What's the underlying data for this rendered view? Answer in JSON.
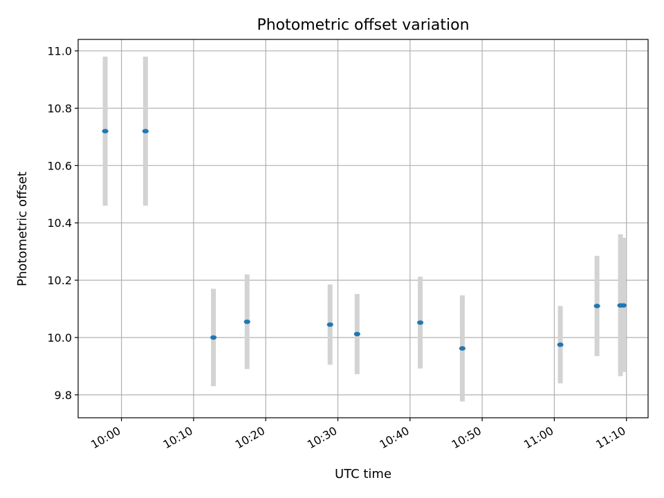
{
  "chart_data": {
    "type": "scatter",
    "title": "Photometric offset variation",
    "xlabel": "UTC time",
    "ylabel": "Photometric offset",
    "x_axis": {
      "kind": "time",
      "range": [
        "09:54",
        "11:13"
      ],
      "ticks": [
        "10:00",
        "10:10",
        "10:20",
        "10:30",
        "10:40",
        "10:50",
        "11:00",
        "11:10"
      ]
    },
    "y_axis": {
      "range": [
        9.72,
        11.04
      ],
      "ticks": [
        9.8,
        10.0,
        10.2,
        10.4,
        10.6,
        10.8,
        11.0
      ],
      "tick_labels": [
        "9.8",
        "10.0",
        "10.2",
        "10.4",
        "10.6",
        "10.8",
        "11.0"
      ]
    },
    "grid": true,
    "colors": {
      "point": "#1f77b4",
      "errorbar": "#d3d3d3",
      "grid": "#b0b0b0"
    },
    "points": [
      {
        "x": "09:57:45",
        "y": 10.72,
        "y_low": 10.46,
        "y_high": 10.98
      },
      {
        "x": "10:03:20",
        "y": 10.72,
        "y_low": 10.46,
        "y_high": 10.98
      },
      {
        "x": "10:12:45",
        "y": 10.0,
        "y_low": 9.83,
        "y_high": 10.17
      },
      {
        "x": "10:17:25",
        "y": 10.055,
        "y_low": 9.89,
        "y_high": 10.22
      },
      {
        "x": "10:28:55",
        "y": 10.045,
        "y_low": 9.905,
        "y_high": 10.185
      },
      {
        "x": "10:32:40",
        "y": 10.012,
        "y_low": 9.872,
        "y_high": 10.152
      },
      {
        "x": "10:41:25",
        "y": 10.052,
        "y_low": 9.892,
        "y_high": 10.212
      },
      {
        "x": "10:47:15",
        "y": 9.962,
        "y_low": 9.777,
        "y_high": 10.147
      },
      {
        "x": "11:00:50",
        "y": 9.975,
        "y_low": 9.84,
        "y_high": 10.11
      },
      {
        "x": "11:05:55",
        "y": 10.11,
        "y_low": 9.935,
        "y_high": 10.285
      },
      {
        "x": "11:09:10",
        "y": 10.112,
        "y_low": 9.865,
        "y_high": 10.36
      },
      {
        "x": "11:09:35",
        "y": 10.112,
        "y_low": 9.88,
        "y_high": 10.348
      }
    ]
  }
}
